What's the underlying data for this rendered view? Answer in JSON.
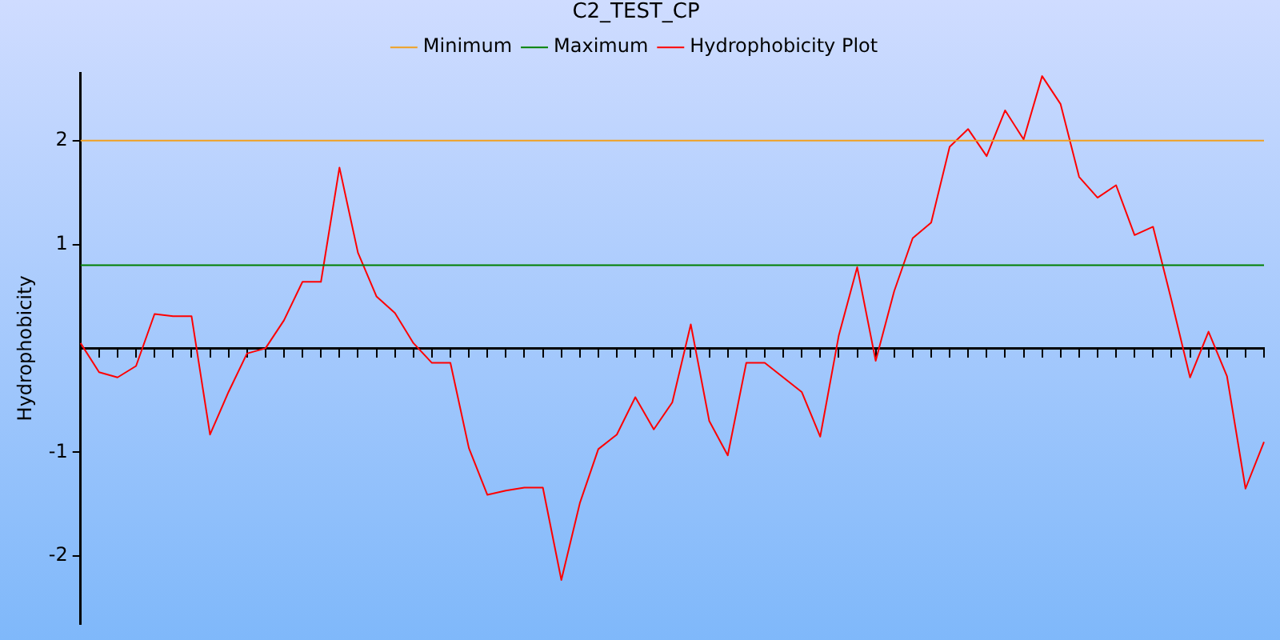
{
  "chart_data": {
    "type": "line",
    "title": "C2_TEST_CP",
    "ylabel": "Hydrophobicity",
    "categories": [
      null,
      null,
      null,
      null,
      null,
      null,
      null,
      null,
      null,
      null,
      null,
      null,
      null,
      null,
      null,
      null,
      null,
      null,
      null,
      null,
      null,
      null,
      null,
      null,
      null,
      null,
      null,
      null,
      null,
      null,
      null,
      null,
      null,
      null,
      null,
      null,
      null,
      null,
      null,
      null,
      null,
      null,
      null,
      null,
      null,
      null,
      null,
      null,
      null,
      null,
      null,
      null,
      null,
      null,
      null,
      null,
      null,
      null,
      null,
      null,
      null,
      null,
      null,
      null,
      null
    ],
    "series": [
      {
        "name": "Minimum",
        "color": "#f0a020",
        "values": [
          2,
          2,
          2,
          2,
          2,
          2,
          2,
          2,
          2,
          2,
          2,
          2,
          2,
          2,
          2,
          2,
          2,
          2,
          2,
          2,
          2,
          2,
          2,
          2,
          2,
          2,
          2,
          2,
          2,
          2,
          2,
          2,
          2,
          2,
          2,
          2,
          2,
          2,
          2,
          2,
          2,
          2,
          2,
          2,
          2,
          2,
          2,
          2,
          2,
          2,
          2,
          2,
          2,
          2,
          2,
          2,
          2,
          2,
          2,
          2,
          2,
          2,
          2,
          2,
          2
        ]
      },
      {
        "name": "Maximum",
        "color": "#008000",
        "values": [
          0.8,
          0.8,
          0.8,
          0.8,
          0.8,
          0.8,
          0.8,
          0.8,
          0.8,
          0.8,
          0.8,
          0.8,
          0.8,
          0.8,
          0.8,
          0.8,
          0.8,
          0.8,
          0.8,
          0.8,
          0.8,
          0.8,
          0.8,
          0.8,
          0.8,
          0.8,
          0.8,
          0.8,
          0.8,
          0.8,
          0.8,
          0.8,
          0.8,
          0.8,
          0.8,
          0.8,
          0.8,
          0.8,
          0.8,
          0.8,
          0.8,
          0.8,
          0.8,
          0.8,
          0.8,
          0.8,
          0.8,
          0.8,
          0.8,
          0.8,
          0.8,
          0.8,
          0.8,
          0.8,
          0.8,
          0.8,
          0.8,
          0.8,
          0.8,
          0.8,
          0.8,
          0.8,
          0.8,
          0.8,
          0.8
        ]
      },
      {
        "name": "Hydrophobicity Plot",
        "color": "#ff0000",
        "values": [
          0.05,
          -0.23,
          -0.28,
          -0.17,
          0.33,
          0.31,
          0.31,
          -0.83,
          -0.42,
          -0.05,
          0,
          0.27,
          0.64,
          0.64,
          1.74,
          0.92,
          0.5,
          0.34,
          0.05,
          -0.14,
          -0.14,
          -0.96,
          -1.41,
          -1.37,
          -1.34,
          -1.34,
          -2.23,
          -1.49,
          -0.97,
          -0.83,
          -0.47,
          -0.78,
          -0.52,
          0.23,
          -0.7,
          -1.03,
          -0.14,
          -0.14,
          -0.28,
          -0.42,
          -0.85,
          0.12,
          0.78,
          -0.12,
          0.55,
          1.06,
          1.21,
          1.94,
          2.11,
          1.85,
          2.29,
          2.01,
          2.62,
          2.35,
          1.65,
          1.45,
          1.57,
          1.09,
          1.17,
          0.46,
          -0.28,
          0.16,
          -0.27,
          -1.35,
          -0.9
        ]
      }
    ],
    "ylim": [
      -2.65,
      2.65
    ],
    "yticks": [
      -2,
      -1,
      1,
      2
    ],
    "tick_labels": "y",
    "legend": "top",
    "marker": "none",
    "line_style": "solid"
  }
}
